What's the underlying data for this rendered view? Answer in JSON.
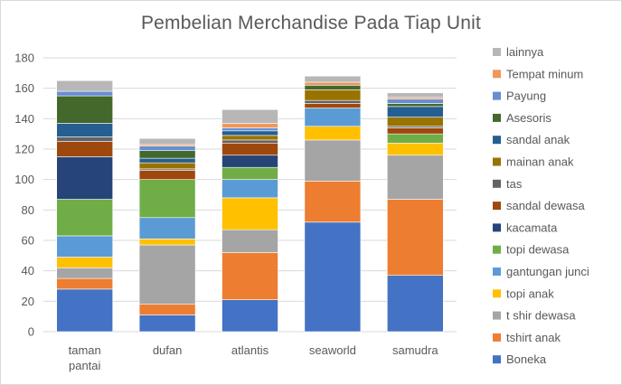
{
  "chart_data": {
    "type": "bar",
    "stacked": true,
    "title": "Pembelian Merchandise Pada Tiap Unit",
    "categories": [
      [
        "taman",
        "pantai"
      ],
      [
        "dufan"
      ],
      [
        "atlantis"
      ],
      [
        "seaworld"
      ],
      [
        "samudra"
      ]
    ],
    "ylim": [
      0,
      180
    ],
    "yticks": [
      0,
      20,
      40,
      60,
      80,
      100,
      120,
      140,
      160,
      180
    ],
    "grid": true,
    "legend_position": "right",
    "series": [
      {
        "name": "Boneka",
        "color": "#4472c4",
        "values": [
          28,
          11,
          21,
          72,
          37
        ]
      },
      {
        "name": "tshirt anak",
        "color": "#ed7d31",
        "values": [
          7,
          7,
          31,
          27,
          50
        ]
      },
      {
        "name": "t shir dewasa",
        "color": "#a5a5a5",
        "values": [
          7,
          39,
          15,
          27,
          29
        ]
      },
      {
        "name": "topi anak",
        "color": "#ffc000",
        "values": [
          7,
          4,
          21,
          9,
          8
        ]
      },
      {
        "name": "gantungan junci",
        "color": "#5b9bd5",
        "values": [
          14,
          14,
          12,
          12,
          0
        ]
      },
      {
        "name": "topi dewasa",
        "color": "#70ad47",
        "values": [
          24,
          25,
          8,
          0,
          6
        ]
      },
      {
        "name": "kacamata",
        "color": "#264478",
        "values": [
          28,
          0,
          8,
          0,
          0
        ]
      },
      {
        "name": "sandal dewasa",
        "color": "#9e480e",
        "values": [
          10,
          6,
          8,
          3,
          4
        ]
      },
      {
        "name": "tas",
        "color": "#636363",
        "values": [
          3,
          1,
          2,
          2,
          1
        ]
      },
      {
        "name": "mainan anak",
        "color": "#997300",
        "values": [
          0,
          4,
          3,
          7,
          6
        ]
      },
      {
        "name": "sandal anak",
        "color": "#255e91",
        "values": [
          9,
          3,
          3,
          0,
          7
        ]
      },
      {
        "name": "Asesoris",
        "color": "#43682b",
        "values": [
          18,
          5,
          0,
          3,
          2
        ]
      },
      {
        "name": "Payung",
        "color": "#698ed0",
        "values": [
          3,
          3,
          2,
          0,
          3
        ]
      },
      {
        "name": "Tempat minum",
        "color": "#f1975a",
        "values": [
          0,
          1,
          3,
          2,
          1
        ]
      },
      {
        "name": "lainnya",
        "color": "#b7b7b7",
        "values": [
          7,
          4,
          9,
          4,
          3
        ]
      }
    ]
  }
}
